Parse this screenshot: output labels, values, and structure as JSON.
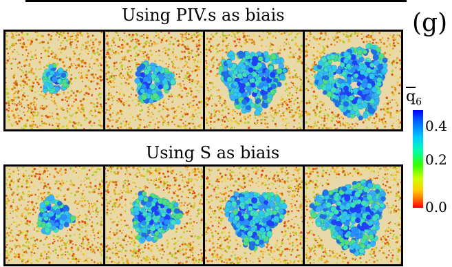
{
  "figure": {
    "panel_label": "(g)",
    "row_top_title": "Using PIV.s as biais",
    "row_bottom_title": "Using S as biais",
    "colorbar": {
      "title_var": "q",
      "title_sub": "6",
      "ticks": [
        "0.4",
        "0.2",
        "0.0"
      ],
      "colors": [
        "#0000ff",
        "#00ccff",
        "#33ff00",
        "#ffcc00",
        "#ff0000"
      ]
    },
    "snapshots_per_row": 4
  }
}
